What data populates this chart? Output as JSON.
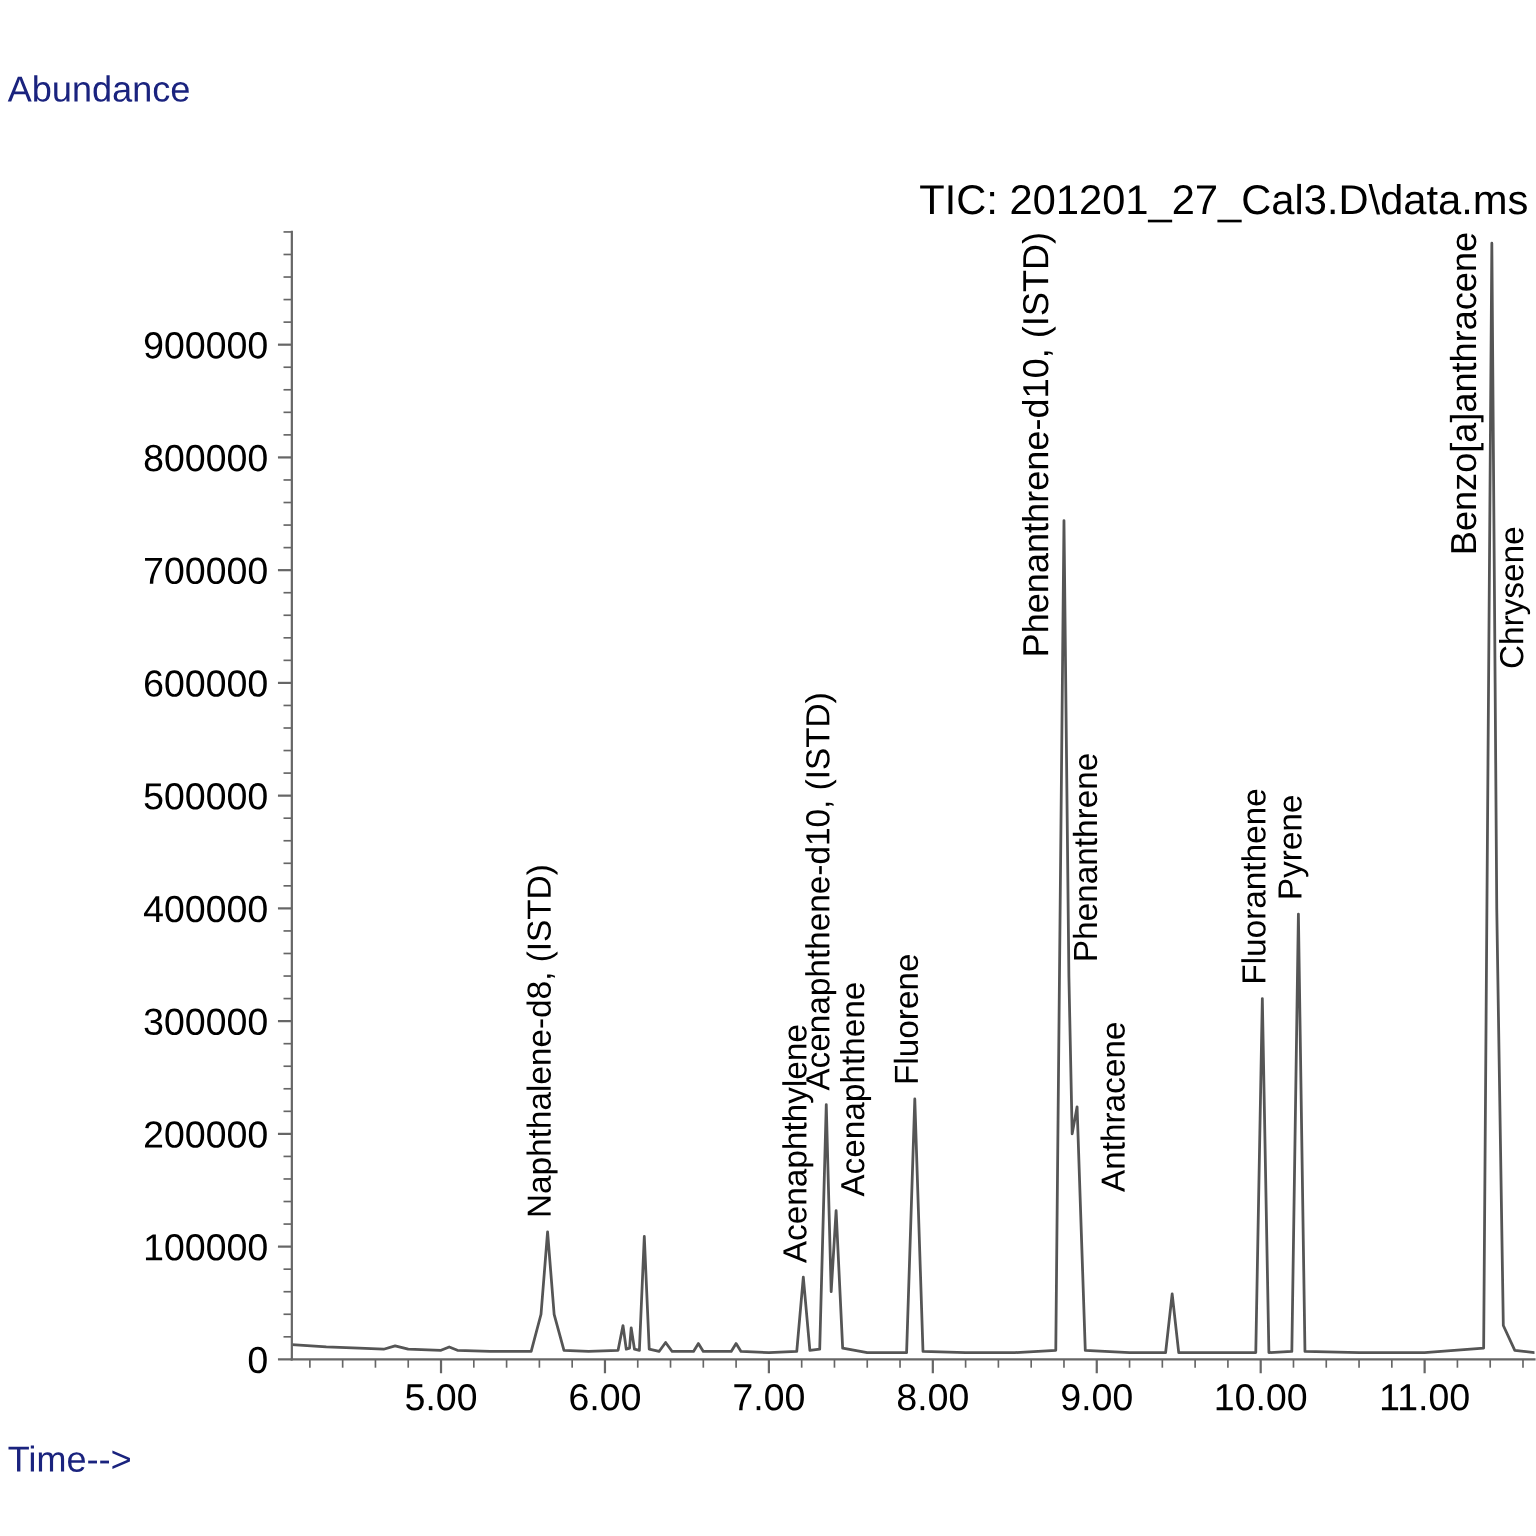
{
  "chart_data": {
    "type": "line",
    "title": "TIC: 201201_27_Cal3.D\\data.ms",
    "xlabel": "Time-->",
    "ylabel": "Abundance",
    "xlim": [
      4.09,
      11.67
    ],
    "ylim": [
      0,
      1000000
    ],
    "xticks": [
      {
        "value": 5,
        "label": "5.00"
      },
      {
        "value": 6,
        "label": "6.00"
      },
      {
        "value": 7,
        "label": "7.00"
      },
      {
        "value": 8,
        "label": "8.00"
      },
      {
        "value": 9,
        "label": "9.00"
      },
      {
        "value": 10,
        "label": "10.00"
      },
      {
        "value": 11,
        "label": "11.00"
      }
    ],
    "yticks": [
      0,
      100000,
      200000,
      300000,
      400000,
      500000,
      600000,
      700000,
      800000,
      900000
    ],
    "grid": false,
    "marker": "none",
    "line_style": "solid",
    "series": [
      {
        "color": "#555555",
        "x": [
          4.09,
          4.3,
          4.5,
          4.65,
          4.72,
          4.8,
          5.0,
          5.05,
          5.1,
          5.3,
          5.55,
          5.61,
          5.65,
          5.69,
          5.75,
          5.9,
          6.08,
          6.11,
          6.13,
          6.15,
          6.16,
          6.18,
          6.21,
          6.24,
          6.27,
          6.33,
          6.37,
          6.41,
          6.54,
          6.57,
          6.6,
          6.77,
          6.8,
          6.83,
          7.0,
          7.17,
          7.21,
          7.25,
          7.31,
          7.35,
          7.38,
          7.41,
          7.45,
          7.6,
          7.84,
          7.89,
          7.94,
          8.2,
          8.5,
          8.75,
          8.8,
          8.83,
          8.85,
          8.88,
          8.93,
          9.2,
          9.42,
          9.46,
          9.5,
          9.7,
          9.97,
          10.01,
          10.05,
          10.19,
          10.23,
          10.27,
          10.6,
          11.0,
          11.36,
          11.41,
          11.43,
          11.44,
          11.48,
          11.55,
          11.67
        ],
        "values": [
          13000,
          11000,
          10000,
          9000,
          12000,
          9000,
          8000,
          11000,
          8000,
          7000,
          7000,
          40000,
          113000,
          40000,
          8000,
          7000,
          8000,
          30000,
          9000,
          10000,
          28000,
          9000,
          8000,
          109000,
          9000,
          7000,
          15000,
          7000,
          7000,
          14000,
          7000,
          7000,
          14000,
          7000,
          6000,
          7000,
          73000,
          8000,
          9000,
          226000,
          60000,
          132000,
          10000,
          6000,
          6000,
          231000,
          7000,
          6000,
          6000,
          8000,
          744000,
          340000,
          200000,
          224000,
          8000,
          6000,
          6000,
          58000,
          6000,
          6000,
          6000,
          320000,
          6000,
          7000,
          395000,
          7000,
          6000,
          6000,
          10000,
          990000,
          600000,
          400000,
          30000,
          8000,
          6000
        ]
      }
    ],
    "annotations": [
      {
        "text": "Naphthalene-d8, (ISTD)",
        "x": 5.65,
        "y": 113000
      },
      {
        "text": "Acenaphthylene",
        "x": 7.21,
        "y": 73000
      },
      {
        "text": "Acenaphthene-d10, (ISTD)",
        "x": 7.35,
        "y": 226000
      },
      {
        "text": "Acenaphthene",
        "x": 7.41,
        "y": 132000
      },
      {
        "text": "Fluorene",
        "x": 7.89,
        "y": 231000
      },
      {
        "text": "Phenanthrene-d10, (ISTD)",
        "x": 8.8,
        "y": 744000
      },
      {
        "text": "Phenanthrene",
        "x": 8.83,
        "y": 340000
      },
      {
        "text": "Anthracene",
        "x": 8.88,
        "y": 224000
      },
      {
        "text": "Fluoranthene",
        "x": 10.01,
        "y": 320000
      },
      {
        "text": "Pyrene",
        "x": 10.23,
        "y": 395000
      },
      {
        "text": "Benzo[a]anthracene",
        "x": 11.41,
        "y": 990000
      },
      {
        "text": "Chrysene",
        "x": 11.43,
        "y": 600000
      }
    ]
  }
}
